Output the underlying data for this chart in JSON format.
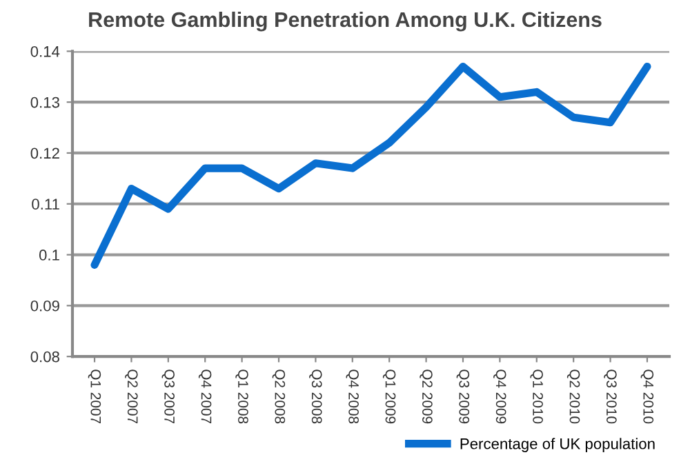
{
  "chart_data": {
    "type": "line",
    "title": "Remote Gambling Penetration Among U.K. Citizens",
    "categories": [
      "Q1 2007",
      "Q2 2007",
      "Q3 2007",
      "Q4 2007",
      "Q1 2008",
      "Q2 2008",
      "Q3 2008",
      "Q4 2008",
      "Q1 2009",
      "Q2 2009",
      "Q3 2009",
      "Q4 2009",
      "Q1 2010",
      "Q2 2010",
      "Q3 2010",
      "Q4 2010"
    ],
    "series": [
      {
        "name": "Percentage of UK population",
        "color": "#0a6fd0",
        "values": [
          0.098,
          0.113,
          0.109,
          0.117,
          0.117,
          0.113,
          0.118,
          0.117,
          0.122,
          0.129,
          0.137,
          0.131,
          0.132,
          0.127,
          0.126,
          0.137
        ]
      }
    ],
    "ylim": [
      0.08,
      0.14
    ],
    "yticks": [
      {
        "value": 0.08,
        "label": "0.08"
      },
      {
        "value": 0.09,
        "label": "0.09"
      },
      {
        "value": 0.1,
        "label": "0.1"
      },
      {
        "value": 0.11,
        "label": "0.11"
      },
      {
        "value": 0.12,
        "label": "0.12"
      },
      {
        "value": 0.13,
        "label": "0.13"
      },
      {
        "value": 0.14,
        "label": "0.14"
      }
    ],
    "grid": "y",
    "legend": "bottom",
    "marker": "none",
    "line_style": "solid"
  }
}
